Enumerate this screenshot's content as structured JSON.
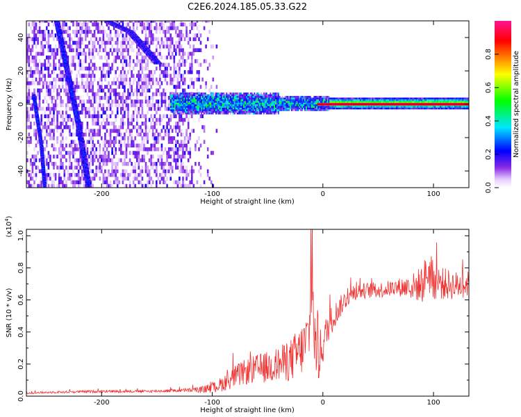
{
  "title": "C2E6.2024.185.05.33.G22",
  "chart_data": [
    {
      "type": "heatmap",
      "xlabel": "Height of straight line (km)",
      "ylabel": "Frequency (Hz)",
      "xlim": [
        -268,
        132
      ],
      "ylim": [
        -50,
        50
      ],
      "xticks": [
        -200,
        -100,
        0,
        100
      ],
      "yticks": [
        -40,
        -20,
        0,
        20,
        40
      ],
      "colorbar": {
        "label": "Normalized spectral amplitude",
        "range": [
          0,
          1
        ],
        "ticks": [
          "0.0",
          "0.2",
          "0.4",
          "0.6",
          "0.8"
        ],
        "colors": [
          "#ffffff",
          "#e6ccff",
          "#8a2be2",
          "#0000ff",
          "#00e5ff",
          "#00ff00",
          "#ffff00",
          "#ff8000",
          "#ff0000",
          "#ff1493"
        ]
      },
      "features": {
        "carrier_line_frequency_hz": 0,
        "carrier_strong_from_km": 5,
        "carrier_band_start_km": -138,
        "scatter_noise_until_km": -95,
        "descending_streak_1": [
          [
            -241,
            50
          ],
          [
            -222,
            -10
          ],
          [
            -212,
            -50
          ]
        ],
        "descending_streak_2": [
          [
            -195,
            50
          ],
          [
            -175,
            44
          ],
          [
            -150,
            25
          ]
        ],
        "descending_streak_3": [
          [
            -262,
            6
          ],
          [
            -255,
            -25
          ],
          [
            -252,
            -50
          ]
        ]
      }
    },
    {
      "type": "line",
      "xlabel": "Height of straight line (km)",
      "ylabel": "SNR (10 * v/v)",
      "y_multiplier": "(x10",
      "y_multiplier_exponent": "4",
      "y_multiplier_close": ")",
      "xlim": [
        -268,
        132
      ],
      "ylim": [
        0,
        1.04
      ],
      "xticks": [
        -200,
        -100,
        0,
        100
      ],
      "yticks": [
        "0.0",
        "0.2",
        "0.4",
        "0.6",
        "0.8",
        "1.0"
      ],
      "grid": false,
      "series": [
        {
          "color": "#f03030",
          "x": [
            -268,
            -240,
            -200,
            -160,
            -130,
            -110,
            -100,
            -90,
            -80,
            -70,
            -60,
            -50,
            -40,
            -30,
            -25,
            -20,
            -15,
            -12,
            -10,
            -8,
            -5,
            0,
            5,
            10,
            15,
            20,
            25,
            30,
            40,
            50,
            60,
            70,
            80,
            90,
            95,
            100,
            110,
            120,
            132
          ],
          "y": [
            0.02,
            0.025,
            0.03,
            0.03,
            0.035,
            0.04,
            0.05,
            0.08,
            0.12,
            0.15,
            0.17,
            0.18,
            0.2,
            0.22,
            0.25,
            0.28,
            0.34,
            0.42,
            0.78,
            0.4,
            0.22,
            0.32,
            0.44,
            0.5,
            0.55,
            0.6,
            0.63,
            0.65,
            0.66,
            0.66,
            0.67,
            0.68,
            0.68,
            0.7,
            0.78,
            0.72,
            0.7,
            0.69,
            0.7
          ],
          "noise": [
            0.006,
            0.007,
            0.008,
            0.008,
            0.01,
            0.02,
            0.03,
            0.05,
            0.07,
            0.08,
            0.09,
            0.1,
            0.11,
            0.13,
            0.15,
            0.16,
            0.18,
            0.2,
            0.25,
            0.2,
            0.18,
            0.12,
            0.1,
            0.08,
            0.07,
            0.06,
            0.05,
            0.05,
            0.05,
            0.05,
            0.05,
            0.06,
            0.08,
            0.12,
            0.14,
            0.12,
            0.1,
            0.09,
            0.08
          ]
        }
      ]
    }
  ]
}
